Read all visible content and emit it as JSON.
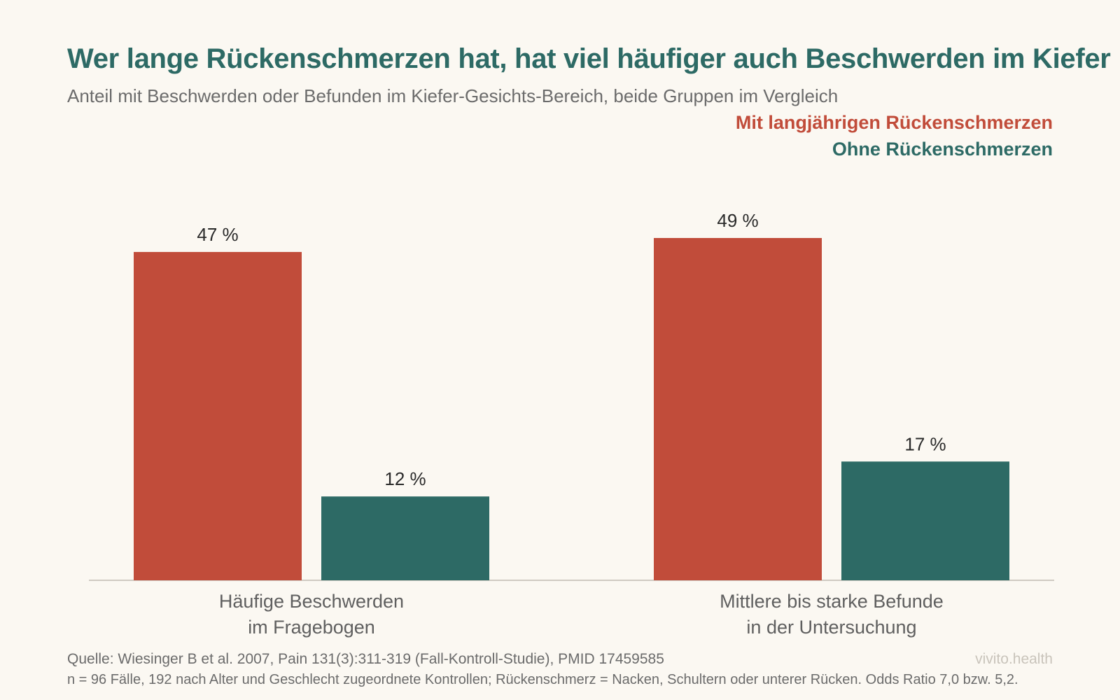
{
  "header": {
    "title": "Wer lange Rückenschmerzen hat, hat viel häufiger auch Beschwerden im Kiefer",
    "subtitle": "Anteil mit Beschwerden oder Befunden im Kiefer-Gesichts-Bereich, beide Gruppen im Vergleich"
  },
  "legend": {
    "items": [
      {
        "label": "Mit langjährigen Rückenschmerzen",
        "color": "#c14c3a"
      },
      {
        "label": "Ohne Rückenschmerzen",
        "color": "#2d6a65"
      }
    ]
  },
  "chart_data": {
    "type": "bar",
    "categories": [
      [
        "Häufige Beschwerden",
        "im Fragebogen"
      ],
      [
        "Mittlere bis starke Befunde",
        "in der Untersuchung"
      ]
    ],
    "series": [
      {
        "name": "Mit langjährigen Rückenschmerzen",
        "values": [
          47,
          49
        ],
        "labels": [
          "47 %",
          "49 %"
        ],
        "color": "#c14c3a"
      },
      {
        "name": "Ohne Rückenschmerzen",
        "values": [
          12,
          17
        ],
        "labels": [
          "12 %",
          "17 %"
        ],
        "color": "#2d6a65"
      }
    ],
    "ylim": [
      0,
      49
    ],
    "grid": false,
    "legend_position": "top-right"
  },
  "footer": {
    "source": "Quelle: Wiesinger B et al. 2007, Pain 131(3):311-319 (Fall-Kontroll-Studie), PMID 17459585",
    "note": "n = 96 Fälle, 192 nach Alter und Geschlecht zugeordnete Kontrollen; Rückenschmerz = Nacken, Schultern oder unterer Rücken. Odds Ratio 7,0 bzw. 5,2.",
    "brand": "vivito.health"
  }
}
